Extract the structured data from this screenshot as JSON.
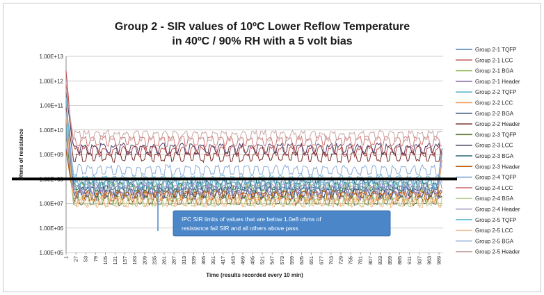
{
  "chart_data": {
    "type": "line",
    "title_lines": [
      "Group 2 - SIR values of 10ºC Lower Reflow Temperature",
      "in 40ºC / 90% RH with a 5 volt bias"
    ],
    "xlabel": "Time (results recorded  every 10 min)",
    "ylabel": "Ohms of resistance",
    "y_scale": "log",
    "ylim": [
      100000,
      10000000000000
    ],
    "y_tick_values": [
      100000,
      1000000,
      10000000,
      100000000,
      1000000000,
      10000000000,
      100000000000,
      1000000000000,
      10000000000000
    ],
    "y_tick_labels": [
      "1.00E+05",
      "1.00E+06",
      "1.00E+07",
      "1.00E+08",
      "1.00E+09",
      "1.00E+10",
      "1.00E+11",
      "1.00E+12",
      "1.00E+13"
    ],
    "xlim": [
      1,
      1000
    ],
    "x_ticks": [
      1,
      27,
      53,
      79,
      105,
      131,
      157,
      183,
      209,
      235,
      261,
      287,
      313,
      339,
      365,
      391,
      417,
      443,
      469,
      495,
      521,
      547,
      573,
      599,
      625,
      651,
      677,
      703,
      729,
      755,
      781,
      807,
      833,
      859,
      885,
      911,
      937,
      963,
      989
    ],
    "grid": true,
    "legend_position": "right",
    "threshold": {
      "value": 100000000,
      "color": "#000000"
    },
    "annotation": {
      "text_lines": [
        "IPC SIR limits of values that are  below 1.0e8 ohms of",
        "resistance fail SIR and all others above pass"
      ],
      "color": "#4a86c8"
    },
    "series": [
      {
        "name": "Group 2-1 TQFP",
        "color": "#4a7ebb",
        "level": 30000000
      },
      {
        "name": "Group 2-1 LCC",
        "color": "#be4b48",
        "level": 1200000000
      },
      {
        "name": "Group 2-1 BGA",
        "color": "#98b954",
        "level": 40000000
      },
      {
        "name": "Group 2-1 Header",
        "color": "#7d60a0",
        "level": 20000000
      },
      {
        "name": "Group 2-2 TQFP",
        "color": "#46aac5",
        "level": 60000000
      },
      {
        "name": "Group 2-2 LCC",
        "color": "#f59d56",
        "level": 15000000
      },
      {
        "name": "Group 2-2 BGA",
        "color": "#2c4d75",
        "level": 25000000
      },
      {
        "name": "Group 2-2 Header",
        "color": "#772c2a",
        "level": 700000000
      },
      {
        "name": "Group 2-3 TQFP",
        "color": "#5f7530",
        "level": 12000000
      },
      {
        "name": "Group 2-3 LCC",
        "color": "#4d3b62",
        "level": 1500000000
      },
      {
        "name": "Group 2-3 BGA",
        "color": "#276a7c",
        "level": 45000000
      },
      {
        "name": "Group 2-3 Header",
        "color": "#b65708",
        "level": 18000000
      },
      {
        "name": "Group 2-4 TQFP",
        "color": "#729aca",
        "level": 50000000
      },
      {
        "name": "Group 2-4 LCC",
        "color": "#d17a78",
        "level": 3000000000
      },
      {
        "name": "Group 2-4 BGA",
        "color": "#b5cf8a",
        "level": 11000000
      },
      {
        "name": "Group 2-4 Header",
        "color": "#a18fbb",
        "level": 35000000
      },
      {
        "name": "Group 2-5 TQFP",
        "color": "#6fc0d8",
        "level": 80000000
      },
      {
        "name": "Group 2-5 LCC",
        "color": "#f8b889",
        "level": 10000000
      },
      {
        "name": "Group 2-5 BGA",
        "color": "#8cadd7",
        "level": 200000000
      },
      {
        "name": "Group 2-5 Header",
        "color": "#c9a6a5",
        "level": 5000000000
      }
    ]
  }
}
